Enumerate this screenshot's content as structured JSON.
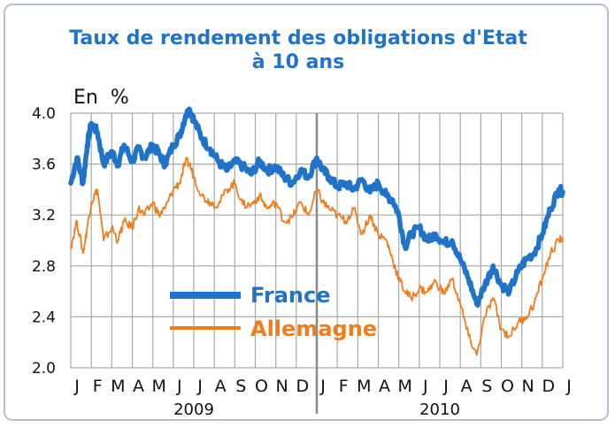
{
  "chart_data": {
    "type": "line",
    "title": "Taux de rendement des obligations d'Etat",
    "subtitle": "à 10 ans",
    "ylabel": "En  %",
    "ylim": [
      2.0,
      4.0
    ],
    "yticks": [
      "4.0",
      "3.6",
      "3.2",
      "2.8",
      "2.4",
      "2.0"
    ],
    "ytick_values": [
      4.0,
      3.6,
      3.2,
      2.8,
      2.4,
      2.0
    ],
    "x_months": [
      "J",
      "F",
      "M",
      "A",
      "M",
      "J",
      "J",
      "A",
      "S",
      "O",
      "N",
      "D",
      "J",
      "F",
      "M",
      "A",
      "M",
      "J",
      "J",
      "A",
      "S",
      "O",
      "N",
      "D",
      "J"
    ],
    "x_years": [
      "2009",
      "2010"
    ],
    "grid": true,
    "legend_position": "center-left",
    "series": [
      {
        "name": "France",
        "color": "#1f73c9",
        "x": [
          0,
          0.3,
          0.6,
          0.8,
          1.0,
          1.3,
          1.6,
          2.0,
          2.3,
          2.6,
          3.0,
          3.3,
          3.6,
          4.0,
          4.3,
          4.6,
          5.0,
          5.3,
          5.6,
          5.8,
          6.0,
          6.4,
          6.8,
          7.2,
          7.6,
          8.0,
          8.4,
          8.8,
          9.2,
          9.6,
          10.0,
          10.4,
          10.8,
          11.2,
          11.6,
          12.0,
          12.3,
          12.6,
          13.0,
          13.4,
          13.8,
          14.2,
          14.6,
          15.0,
          15.4,
          15.7,
          16.0,
          16.3,
          16.6,
          17.0,
          17.4,
          17.8,
          18.2,
          18.6,
          19.0,
          19.4,
          19.8,
          20.2,
          20.6,
          21.0,
          21.4,
          21.8,
          22.2,
          22.6,
          23.0,
          23.4,
          23.8,
          24.0
        ],
        "values": [
          3.45,
          3.65,
          3.45,
          3.75,
          3.92,
          3.85,
          3.6,
          3.7,
          3.6,
          3.75,
          3.62,
          3.72,
          3.65,
          3.75,
          3.68,
          3.6,
          3.75,
          3.82,
          3.98,
          4.03,
          3.95,
          3.8,
          3.72,
          3.62,
          3.55,
          3.62,
          3.58,
          3.52,
          3.62,
          3.55,
          3.58,
          3.5,
          3.45,
          3.55,
          3.5,
          3.65,
          3.55,
          3.5,
          3.42,
          3.45,
          3.4,
          3.48,
          3.38,
          3.45,
          3.35,
          3.32,
          3.2,
          2.95,
          3.05,
          3.1,
          3.0,
          3.05,
          2.98,
          3.0,
          2.85,
          2.7,
          2.5,
          2.65,
          2.8,
          2.65,
          2.6,
          2.75,
          2.85,
          2.9,
          3.05,
          3.25,
          3.4,
          3.38
        ]
      },
      {
        "name": "Allemagne",
        "color": "#f07c1a",
        "x": [
          0,
          0.3,
          0.6,
          0.8,
          1.0,
          1.3,
          1.6,
          2.0,
          2.3,
          2.6,
          3.0,
          3.3,
          3.6,
          4.0,
          4.3,
          4.6,
          5.0,
          5.3,
          5.6,
          5.8,
          6.0,
          6.4,
          6.8,
          7.2,
          7.6,
          8.0,
          8.4,
          8.8,
          9.2,
          9.6,
          10.0,
          10.4,
          10.8,
          11.2,
          11.6,
          12.0,
          12.3,
          12.6,
          13.0,
          13.4,
          13.8,
          14.2,
          14.6,
          15.0,
          15.4,
          15.7,
          16.0,
          16.3,
          16.6,
          17.0,
          17.4,
          17.8,
          18.2,
          18.6,
          19.0,
          19.4,
          19.8,
          20.2,
          20.6,
          21.0,
          21.4,
          21.8,
          22.2,
          22.6,
          23.0,
          23.4,
          23.8,
          24.0
        ],
        "values": [
          2.95,
          3.15,
          2.9,
          3.1,
          3.3,
          3.4,
          3.0,
          3.1,
          3.0,
          3.15,
          3.1,
          3.25,
          3.2,
          3.3,
          3.2,
          3.25,
          3.4,
          3.45,
          3.62,
          3.6,
          3.5,
          3.35,
          3.3,
          3.28,
          3.4,
          3.45,
          3.28,
          3.28,
          3.35,
          3.25,
          3.3,
          3.15,
          3.18,
          3.3,
          3.2,
          3.4,
          3.3,
          3.25,
          3.2,
          3.15,
          3.25,
          3.05,
          3.2,
          3.05,
          3.0,
          2.85,
          2.7,
          2.6,
          2.55,
          2.62,
          2.6,
          2.68,
          2.58,
          2.7,
          2.5,
          2.25,
          2.1,
          2.4,
          2.55,
          2.3,
          2.25,
          2.35,
          2.4,
          2.5,
          2.7,
          2.9,
          3.0,
          3.02
        ]
      }
    ]
  }
}
